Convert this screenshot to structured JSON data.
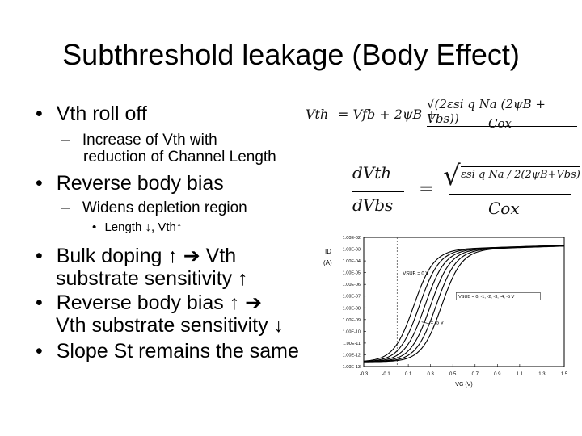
{
  "slide": {
    "title": "Subthreshold leakage (Body Effect)",
    "bullets": [
      {
        "marker": "•",
        "text": "Vth roll off"
      },
      {
        "marker": "–",
        "text_line1": "Increase of Vth with",
        "text_line2": "reduction of Channel Length"
      },
      {
        "marker": "•",
        "text": "Reverse body bias"
      },
      {
        "marker": "–",
        "text": "Widens depletion region"
      },
      {
        "marker": "•",
        "text": "Length ↓, Vth↑"
      },
      {
        "marker": "•",
        "text_line1": "Bulk doping ↑ ➔ Vth",
        "text_line2": "substrate sensitivity ↑"
      },
      {
        "marker": "•",
        "text_line1": "Reverse body bias ↑ ➔",
        "text_line2": "Vth substrate sensitivity ↓"
      },
      {
        "marker": "•",
        "text": "Slope St remains the same"
      }
    ]
  },
  "equations": {
    "vth": {
      "lhs": "Vth",
      "rhs_terms": "= Vfb + 2ψB +",
      "numerator": "√(2εsi q Na (2ψB + Vbs))",
      "denominator": "Cox"
    },
    "dvth": {
      "lhs_num": "dVth",
      "lhs_den": "dVbs",
      "eq": "=",
      "rhs_num": "εsi q Na / 2(2ψB+Vbs)",
      "rhs_den": "Cox"
    }
  },
  "chart_data": {
    "type": "line",
    "ylabel": "ID (A)",
    "xlabel": "VG (V)",
    "log_y": true,
    "x_ticks": [
      "-0.3",
      "-0.1",
      "0.1",
      "0.3",
      "0.5",
      "0.7",
      "0.9",
      "1.1",
      "1.3",
      "1.5"
    ],
    "y_ticks": [
      "1.00E-02",
      "1.00E-03",
      "1.00E-04",
      "1.00E-05",
      "1.00E-06",
      "1.00E-07",
      "1.00E-08",
      "1.00E-09",
      "1.00E-10",
      "1.00E-11",
      "1.00E-12",
      "1.00E-13"
    ],
    "xlim": [
      -0.3,
      1.5
    ],
    "ylim_log10": [
      -13,
      -2
    ],
    "annotations": [
      "VSUB = 0 V",
      "VSUB = 0, -1, -2, -3, -4, -5 V",
      "= -5 V"
    ],
    "series_vth_shift": [
      0.0,
      0.05,
      0.1,
      0.15,
      0.2,
      0.25
    ]
  }
}
